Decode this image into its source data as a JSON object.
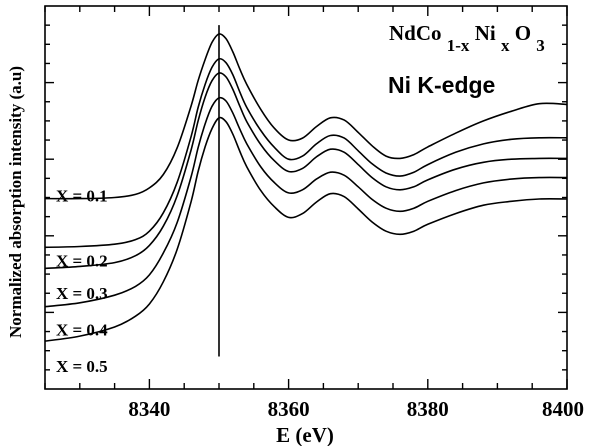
{
  "chart_data": {
    "type": "line",
    "title": "Ni K-edge",
    "formula": {
      "base": "NdCo",
      "sub1": "1-x",
      "mid": "Ni",
      "sub2": "x",
      "end": "O",
      "sub3": "3"
    },
    "xlabel": "E (eV)",
    "ylabel": "Normalized  absorption intensity (a.u)",
    "xlim": [
      8325,
      8400
    ],
    "ylim": [
      0,
      10
    ],
    "xticks": [
      8340,
      8360,
      8380,
      8400
    ],
    "ytick_labels_shown": false,
    "grid": false,
    "vertical_line": {
      "x": 8350
    },
    "series": [
      {
        "name": "X = 0.1",
        "x": [
          8325,
          8330,
          8335,
          8338,
          8340,
          8342,
          8344,
          8346,
          8347,
          8348,
          8349,
          8350,
          8351,
          8352,
          8353,
          8354,
          8356,
          8358,
          8360,
          8362,
          8364,
          8366,
          8368,
          8370,
          8372,
          8374,
          8376,
          8378,
          8380,
          8384,
          8388,
          8392,
          8396,
          8400
        ],
        "y": [
          4.97,
          4.97,
          5.0,
          5.08,
          5.25,
          5.6,
          6.3,
          7.4,
          8.05,
          8.6,
          9.05,
          9.27,
          9.15,
          8.8,
          8.35,
          7.95,
          7.3,
          6.8,
          6.5,
          6.55,
          6.85,
          7.08,
          7.02,
          6.7,
          6.35,
          6.08,
          6.02,
          6.12,
          6.32,
          6.68,
          7.0,
          7.25,
          7.45,
          7.43
        ]
      },
      {
        "name": "X = 0.2",
        "x": [
          8325,
          8330,
          8335,
          8338,
          8340,
          8342,
          8344,
          8346,
          8347,
          8348,
          8349,
          8350,
          8351,
          8352,
          8353,
          8354,
          8356,
          8358,
          8360,
          8362,
          8364,
          8366,
          8368,
          8370,
          8372,
          8374,
          8376,
          8378,
          8380,
          8384,
          8388,
          8392,
          8396,
          8400
        ],
        "y": [
          3.7,
          3.72,
          3.78,
          3.9,
          4.12,
          4.6,
          5.4,
          6.6,
          7.35,
          7.95,
          8.4,
          8.62,
          8.52,
          8.2,
          7.75,
          7.35,
          6.75,
          6.3,
          6.0,
          6.08,
          6.4,
          6.62,
          6.55,
          6.22,
          5.88,
          5.64,
          5.56,
          5.66,
          5.86,
          6.18,
          6.4,
          6.52,
          6.56,
          6.56
        ]
      },
      {
        "name": "X = 0.3",
        "x": [
          8325,
          8330,
          8335,
          8338,
          8340,
          8342,
          8344,
          8346,
          8347,
          8348,
          8349,
          8350,
          8351,
          8352,
          8353,
          8354,
          8356,
          8358,
          8360,
          8362,
          8364,
          8366,
          8368,
          8370,
          8372,
          8374,
          8376,
          8378,
          8380,
          8384,
          8388,
          8392,
          8396,
          8400
        ],
        "y": [
          3.15,
          3.2,
          3.3,
          3.48,
          3.75,
          4.25,
          5.05,
          6.25,
          7.0,
          7.62,
          8.05,
          8.25,
          8.15,
          7.82,
          7.38,
          6.98,
          6.38,
          5.95,
          5.68,
          5.76,
          6.06,
          6.26,
          6.18,
          5.86,
          5.52,
          5.28,
          5.2,
          5.28,
          5.46,
          5.74,
          5.92,
          6.0,
          6.02,
          6.02
        ]
      },
      {
        "name": "X = 0.4",
        "x": [
          8325,
          8330,
          8335,
          8338,
          8340,
          8342,
          8344,
          8346,
          8347,
          8348,
          8349,
          8350,
          8351,
          8352,
          8353,
          8354,
          8356,
          8358,
          8360,
          8362,
          8364,
          8366,
          8368,
          8370,
          8372,
          8374,
          8376,
          8378,
          8380,
          8384,
          8388,
          8392,
          8396,
          8400
        ],
        "y": [
          2.15,
          2.25,
          2.45,
          2.68,
          2.98,
          3.55,
          4.35,
          5.55,
          6.3,
          6.92,
          7.38,
          7.6,
          7.52,
          7.2,
          6.78,
          6.4,
          5.8,
          5.38,
          5.12,
          5.2,
          5.48,
          5.66,
          5.58,
          5.28,
          4.95,
          4.72,
          4.64,
          4.72,
          4.9,
          5.18,
          5.38,
          5.48,
          5.52,
          5.52
        ]
      },
      {
        "name": "X = 0.5",
        "x": [
          8325,
          8330,
          8335,
          8338,
          8340,
          8342,
          8344,
          8346,
          8347,
          8348,
          8349,
          8350,
          8351,
          8352,
          8353,
          8354,
          8356,
          8358,
          8360,
          8362,
          8364,
          8366,
          8368,
          8370,
          8372,
          8374,
          8376,
          8378,
          8380,
          8384,
          8388,
          8392,
          8396,
          8400
        ],
        "y": [
          1.25,
          1.38,
          1.62,
          1.9,
          2.22,
          2.8,
          3.65,
          4.9,
          5.68,
          6.32,
          6.8,
          7.08,
          6.98,
          6.65,
          6.2,
          5.8,
          5.18,
          4.75,
          4.48,
          4.58,
          4.88,
          5.1,
          5.02,
          4.7,
          4.36,
          4.12,
          4.04,
          4.12,
          4.3,
          4.58,
          4.8,
          4.9,
          4.96,
          4.96
        ]
      }
    ]
  }
}
